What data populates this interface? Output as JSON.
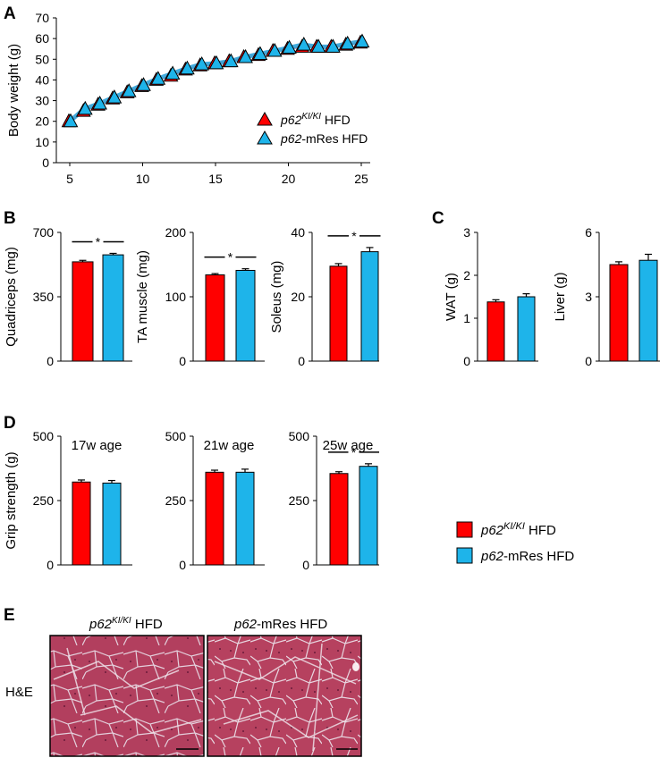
{
  "colors": {
    "red": "#ff0000",
    "blue": "#1eb4ea",
    "blue_line": "#3aa8dc",
    "tissue": "#b8405f",
    "tissue_dark": "#8e2448",
    "membrane": "#e6d4de"
  },
  "panels": {
    "A": "A",
    "B": "B",
    "C": "C",
    "D": "D",
    "E": "E"
  },
  "legend_A": {
    "red_italic": "p62",
    "red_sup": "KI/KI",
    "red_rest": " HFD",
    "blue_italic": "p62",
    "blue_rest": "-mRes HFD"
  },
  "legend_D": {
    "red_italic": "p62",
    "red_sup": "KI/KI",
    "red_rest": " HFD",
    "blue_italic": "p62",
    "blue_rest": "-mRes HFD"
  },
  "panel_E": {
    "label_row": "H&E",
    "img1_italic": "p62",
    "img1_sup": "KI/KI",
    "img1_rest": " HFD",
    "img2_italic": "p62",
    "img2_rest": "-mRes HFD"
  },
  "chart_data": [
    {
      "id": "A",
      "type": "line",
      "title": "",
      "xlabel": "",
      "ylabel": "Body weight (g)",
      "x": [
        5,
        6,
        7,
        8,
        9,
        10,
        11,
        12,
        13,
        14,
        15,
        16,
        17,
        18,
        19,
        20,
        21,
        22,
        23,
        24,
        25
      ],
      "xticks": [
        "5",
        "10",
        "15",
        "20",
        "25"
      ],
      "xtick_values": [
        5,
        10,
        15,
        20,
        25
      ],
      "xlim": [
        5,
        25
      ],
      "yticks": [
        "0",
        "10",
        "20",
        "30",
        "40",
        "50",
        "60",
        "70"
      ],
      "ylim": [
        0,
        70
      ],
      "series": [
        {
          "name": "p62KI/KI HFD",
          "color": "#ff0000",
          "marker": "triangle",
          "values": [
            20,
            25,
            28,
            31,
            34,
            37,
            40,
            42,
            45,
            47,
            48,
            49,
            51,
            52,
            54,
            55,
            56,
            56,
            56,
            57,
            58
          ]
        },
        {
          "name": "p62-mRes HFD",
          "color": "#1eb4ea",
          "marker": "triangle",
          "values": [
            20,
            26,
            28.5,
            31.5,
            34.5,
            37.5,
            40.5,
            43,
            45.5,
            47.5,
            48,
            49,
            51,
            52.5,
            54,
            55.5,
            57,
            56,
            56,
            57.5,
            58.5
          ]
        }
      ]
    },
    {
      "id": "B1",
      "type": "bar",
      "ylabel": "Quadriceps (mg)",
      "title": "",
      "categories": [
        "p62KI/KI HFD",
        "p62-mRes HFD"
      ],
      "values": [
        540,
        578
      ],
      "errors": [
        8,
        8
      ],
      "yticks": [
        "0",
        "350",
        "700"
      ],
      "ylim": [
        0,
        700
      ],
      "significance": "*"
    },
    {
      "id": "B2",
      "type": "bar",
      "ylabel": "TA muscle (mg)",
      "title": "",
      "categories": [
        "p62KI/KI HFD",
        "p62-mRes HFD"
      ],
      "values": [
        134,
        141
      ],
      "errors": [
        2,
        2.5
      ],
      "yticks": [
        "0",
        "100",
        "200"
      ],
      "ylim": [
        0,
        200
      ],
      "significance": "*"
    },
    {
      "id": "B3",
      "type": "bar",
      "ylabel": "Soleus (mg)",
      "title": "",
      "categories": [
        "p62KI/KI HFD",
        "p62-mRes HFD"
      ],
      "values": [
        29.5,
        34
      ],
      "errors": [
        0.8,
        1.3
      ],
      "yticks": [
        "0",
        "20",
        "40"
      ],
      "ylim": [
        0,
        40
      ],
      "significance": "*"
    },
    {
      "id": "C1",
      "type": "bar",
      "ylabel": "WAT (g)",
      "title": "",
      "categories": [
        "p62KI/KI HFD",
        "p62-mRes HFD"
      ],
      "values": [
        1.38,
        1.5
      ],
      "errors": [
        0.05,
        0.07
      ],
      "yticks": [
        "0",
        "1",
        "2",
        "3"
      ],
      "ylim": [
        0,
        3
      ],
      "significance": ""
    },
    {
      "id": "C2",
      "type": "bar",
      "ylabel": "Liver (g)",
      "title": "",
      "categories": [
        "p62KI/KI HFD",
        "p62-mRes HFD"
      ],
      "values": [
        4.5,
        4.7
      ],
      "errors": [
        0.13,
        0.28
      ],
      "yticks": [
        "0",
        "3",
        "6"
      ],
      "ylim": [
        0,
        6
      ],
      "significance": ""
    },
    {
      "id": "D1",
      "type": "bar",
      "ylabel": "Grip strength (g)",
      "title": "17w age",
      "categories": [
        "p62KI/KI HFD",
        "p62-mRes HFD"
      ],
      "values": [
        322,
        318
      ],
      "errors": [
        8,
        10
      ],
      "yticks": [
        "0",
        "250",
        "500"
      ],
      "ylim": [
        0,
        500
      ],
      "significance": ""
    },
    {
      "id": "D2",
      "type": "bar",
      "ylabel": "",
      "title": "21w age",
      "categories": [
        "p62KI/KI HFD",
        "p62-mRes HFD"
      ],
      "values": [
        360,
        360
      ],
      "errors": [
        8,
        12
      ],
      "yticks": [
        "0",
        "250",
        "500"
      ],
      "ylim": [
        0,
        500
      ],
      "significance": ""
    },
    {
      "id": "D3",
      "type": "bar",
      "ylabel": "",
      "title": "25w age",
      "categories": [
        "p62KI/KI HFD",
        "p62-mRes HFD"
      ],
      "values": [
        355,
        383
      ],
      "errors": [
        7,
        10
      ],
      "yticks": [
        "0",
        "250",
        "500"
      ],
      "ylim": [
        0,
        500
      ],
      "significance": "*"
    }
  ]
}
